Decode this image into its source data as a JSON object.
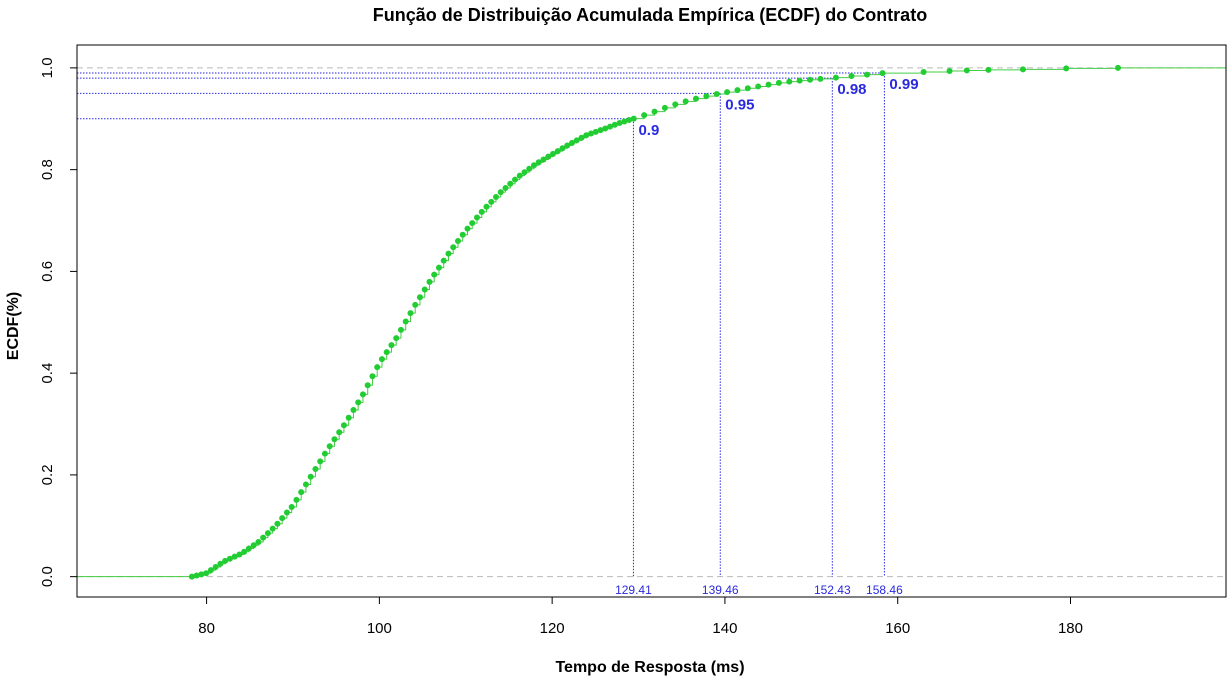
{
  "chart_data": {
    "type": "line",
    "title": "Função de Distribuição Acumulada Empírica (ECDF) do Contrato",
    "xlabel": "Tempo de Resposta (ms)",
    "ylabel": "ECDF(%)",
    "xlim": [
      65,
      198
    ],
    "ylim": [
      -0.04,
      1.045
    ],
    "x_ticks": [
      80,
      100,
      120,
      140,
      160,
      180
    ],
    "x_tick_labels": [
      "80",
      "100",
      "120",
      "140",
      "160",
      "180"
    ],
    "y_ticks": [
      0,
      0.2,
      0.4,
      0.6,
      0.8,
      1
    ],
    "y_tick_labels": [
      "0.0",
      "0.2",
      "0.4",
      "0.6",
      "0.8",
      "1.0"
    ],
    "grid": false,
    "reference_lines_y": [
      0,
      1
    ],
    "colors": {
      "points": "#22cc33",
      "step": "#44cc44",
      "quantile": "#2a2ae0",
      "reference": "#bbbbbb",
      "axis": "#000000"
    },
    "quantiles": [
      {
        "p": 0.9,
        "x": 129.41,
        "label": "0.9",
        "x_label": "129.41"
      },
      {
        "p": 0.95,
        "x": 139.46,
        "label": "0.95",
        "x_label": "139.46"
      },
      {
        "p": 0.98,
        "x": 152.43,
        "label": "0.98",
        "x_label": "152.43"
      },
      {
        "p": 0.99,
        "x": 158.46,
        "label": "0.99",
        "x_label": "158.46"
      }
    ],
    "ecdf_curve": [
      [
        78.3,
        0.0
      ],
      [
        80,
        0.007
      ],
      [
        82,
        0.03
      ],
      [
        84,
        0.045
      ],
      [
        86,
        0.068
      ],
      [
        88,
        0.1
      ],
      [
        90,
        0.14
      ],
      [
        92,
        0.195
      ],
      [
        94,
        0.25
      ],
      [
        96,
        0.3
      ],
      [
        98,
        0.355
      ],
      [
        100,
        0.42
      ],
      [
        102,
        0.47
      ],
      [
        104,
        0.53
      ],
      [
        106,
        0.585
      ],
      [
        108,
        0.635
      ],
      [
        110,
        0.68
      ],
      [
        112,
        0.72
      ],
      [
        114,
        0.755
      ],
      [
        116,
        0.785
      ],
      [
        118,
        0.81
      ],
      [
        120,
        0.83
      ],
      [
        122,
        0.85
      ],
      [
        124,
        0.868
      ],
      [
        126,
        0.88
      ],
      [
        128,
        0.893
      ],
      [
        129.41,
        0.9
      ],
      [
        132,
        0.915
      ],
      [
        134,
        0.927
      ],
      [
        136,
        0.937
      ],
      [
        138,
        0.945
      ],
      [
        139.46,
        0.95
      ],
      [
        142,
        0.958
      ],
      [
        144,
        0.964
      ],
      [
        146,
        0.97
      ],
      [
        148,
        0.974
      ],
      [
        150,
        0.977
      ],
      [
        152.43,
        0.98
      ],
      [
        154,
        0.983
      ],
      [
        156,
        0.986
      ],
      [
        158.46,
        0.99
      ],
      [
        163,
        0.992
      ],
      [
        166,
        0.994
      ],
      [
        168,
        0.995
      ],
      [
        170.5,
        0.996
      ],
      [
        174.5,
        0.997
      ],
      [
        179.5,
        0.999
      ],
      [
        185.5,
        1.0
      ]
    ]
  }
}
